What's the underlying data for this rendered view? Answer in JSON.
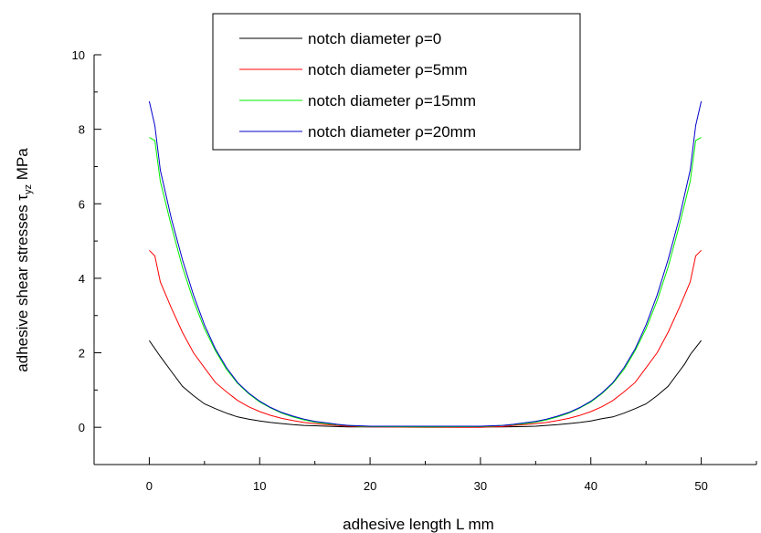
{
  "chart_data": {
    "type": "line",
    "title": "",
    "xlabel": "adhesive length   L  mm",
    "ylabel_main": "adhesive shear stresses   ",
    "ylabel_symbol": "τ",
    "ylabel_subscript": "yz",
    "ylabel_unit": "  MPa",
    "xlim": [
      -5,
      55
    ],
    "ylim": [
      -1,
      10
    ],
    "x_ticks": [
      0,
      10,
      20,
      30,
      40,
      50
    ],
    "y_ticks": [
      0,
      2,
      4,
      6,
      8,
      10
    ],
    "grid": false,
    "legend_position": "top-center",
    "series": [
      {
        "name": "notch diameter  ρ=0",
        "color": "#000000",
        "x": [
          0,
          1,
          2,
          3,
          4,
          5,
          6,
          7,
          8,
          9,
          10,
          11,
          12,
          13,
          14,
          15,
          16,
          17,
          18,
          19,
          20,
          22,
          25,
          28,
          30,
          32,
          34,
          35,
          36,
          37,
          38,
          39,
          40,
          41,
          42,
          43,
          44,
          45,
          46,
          47,
          48,
          48.5,
          49,
          50
        ],
        "y": [
          2.33,
          1.9,
          1.5,
          1.1,
          0.85,
          0.63,
          0.5,
          0.38,
          0.28,
          0.22,
          0.17,
          0.13,
          0.1,
          0.07,
          0.05,
          0.04,
          0.03,
          0.02,
          0.01,
          0.01,
          0.01,
          0.01,
          0.01,
          0.01,
          0.01,
          0.01,
          0.02,
          0.03,
          0.05,
          0.07,
          0.1,
          0.13,
          0.17,
          0.23,
          0.28,
          0.38,
          0.5,
          0.63,
          0.85,
          1.1,
          1.5,
          1.7,
          1.95,
          2.33
        ]
      },
      {
        "name": "notch diameter  ρ=5mm",
        "color": "#ff0000",
        "x": [
          0,
          0.5,
          1,
          2,
          3,
          4,
          5,
          6,
          7,
          8,
          9,
          10,
          11,
          12,
          13,
          14,
          15,
          16,
          17,
          18,
          19,
          20,
          25,
          30,
          31,
          32,
          33,
          34,
          35,
          36,
          37,
          38,
          39,
          40,
          41,
          42,
          43,
          44,
          45,
          46,
          47,
          48,
          49,
          49.5,
          50
        ],
        "y": [
          4.75,
          4.6,
          3.9,
          3.2,
          2.55,
          2.0,
          1.6,
          1.2,
          0.95,
          0.72,
          0.55,
          0.42,
          0.32,
          0.24,
          0.18,
          0.13,
          0.1,
          0.07,
          0.05,
          0.03,
          0.02,
          0.01,
          0.0,
          0.0,
          0.01,
          0.02,
          0.05,
          0.07,
          0.1,
          0.13,
          0.18,
          0.24,
          0.32,
          0.42,
          0.55,
          0.72,
          0.95,
          1.2,
          1.6,
          2.0,
          2.55,
          3.2,
          3.9,
          4.6,
          4.75
        ]
      },
      {
        "name": "notch diameter  ρ=15mm",
        "color": "#00ee00",
        "x": [
          0,
          0.5,
          1,
          2,
          3,
          4,
          5,
          6,
          7,
          8,
          9,
          10,
          11,
          12,
          13,
          14,
          15,
          16,
          17,
          18,
          19,
          20,
          25,
          30,
          31,
          32,
          33,
          34,
          35,
          36,
          37,
          38,
          39,
          40,
          41,
          42,
          43,
          44,
          45,
          46,
          47,
          48,
          49,
          49.5,
          50
        ],
        "y": [
          7.78,
          7.7,
          6.6,
          5.4,
          4.3,
          3.4,
          2.65,
          2.05,
          1.55,
          1.18,
          0.9,
          0.68,
          0.52,
          0.38,
          0.28,
          0.2,
          0.14,
          0.1,
          0.07,
          0.05,
          0.03,
          0.02,
          0.01,
          0.02,
          0.03,
          0.05,
          0.07,
          0.1,
          0.14,
          0.2,
          0.28,
          0.38,
          0.52,
          0.68,
          0.9,
          1.18,
          1.55,
          2.05,
          2.65,
          3.4,
          4.3,
          5.4,
          6.6,
          7.7,
          7.78
        ]
      },
      {
        "name": "notch diameter  ρ=20mm",
        "color": "#0000cc",
        "x": [
          0,
          0.5,
          1,
          2,
          3,
          4,
          5,
          6,
          7,
          8,
          9,
          10,
          11,
          12,
          13,
          14,
          15,
          16,
          17,
          18,
          19,
          20,
          25,
          30,
          31,
          32,
          33,
          34,
          35,
          36,
          37,
          38,
          39,
          40,
          41,
          42,
          43,
          44,
          45,
          46,
          47,
          48,
          49,
          49.5,
          50
        ],
        "y": [
          8.75,
          8.1,
          6.9,
          5.6,
          4.5,
          3.55,
          2.75,
          2.1,
          1.6,
          1.2,
          0.92,
          0.7,
          0.53,
          0.4,
          0.3,
          0.22,
          0.16,
          0.12,
          0.08,
          0.05,
          0.04,
          0.03,
          0.03,
          0.03,
          0.04,
          0.05,
          0.08,
          0.12,
          0.16,
          0.22,
          0.3,
          0.4,
          0.53,
          0.7,
          0.92,
          1.2,
          1.6,
          2.1,
          2.75,
          3.55,
          4.5,
          5.6,
          6.9,
          8.1,
          8.75
        ]
      }
    ]
  }
}
